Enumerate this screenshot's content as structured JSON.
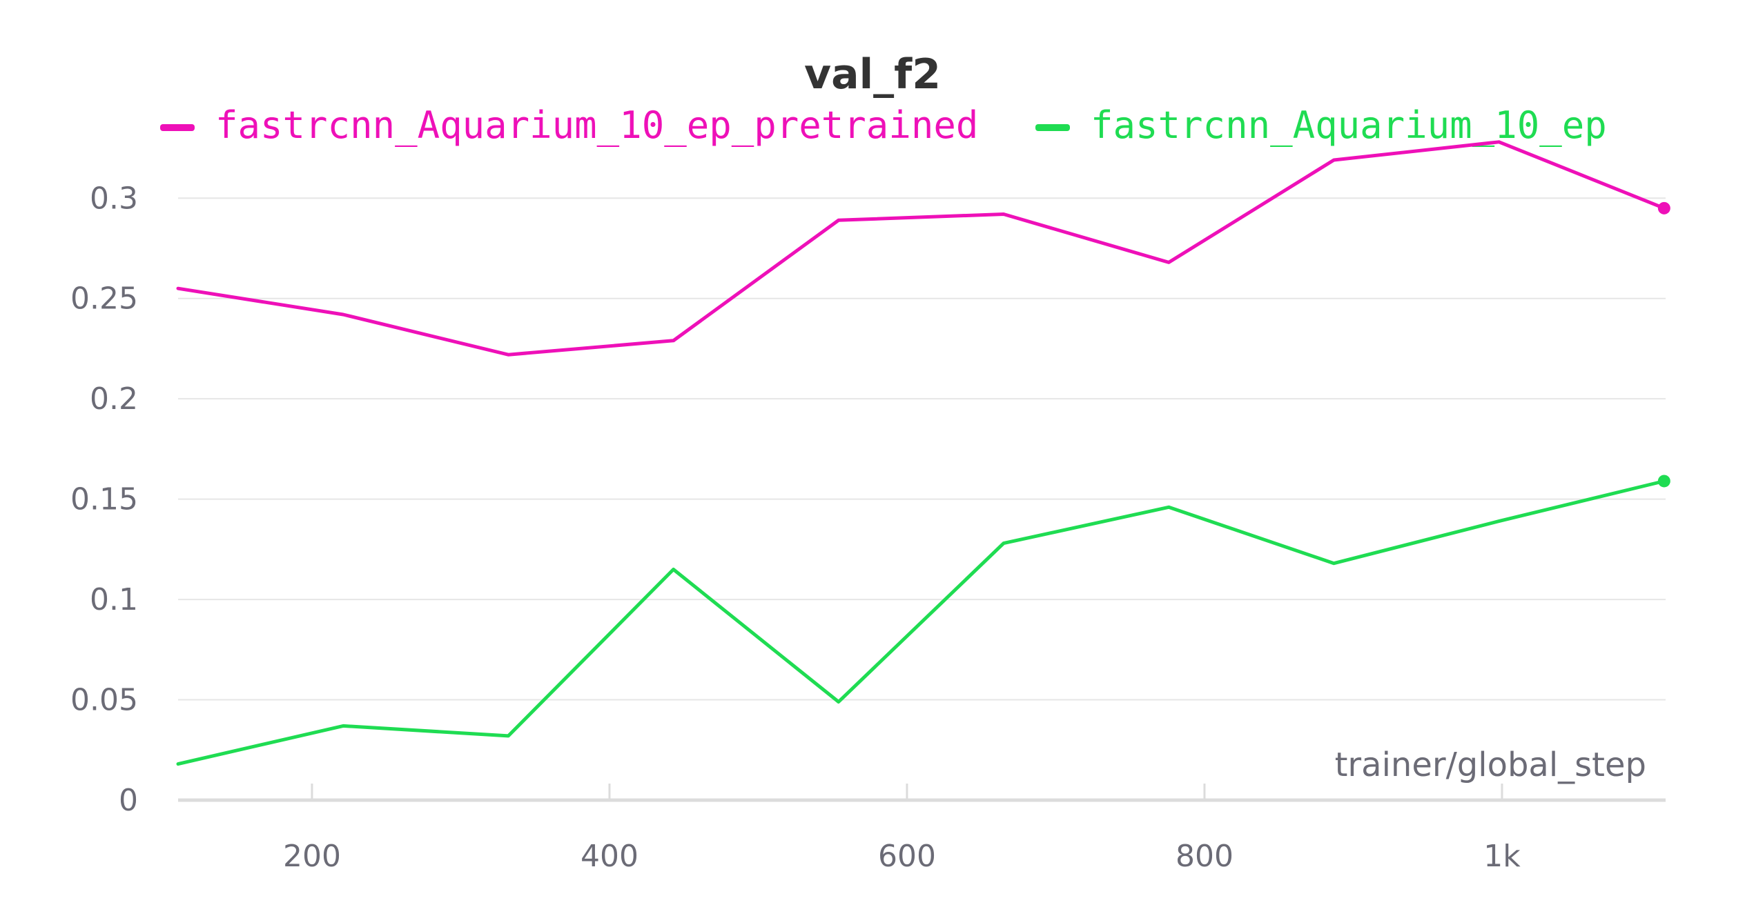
{
  "chart_data": {
    "type": "line",
    "title": "val_f2",
    "xlabel": "trainer/global_step",
    "ylabel": "",
    "xlim": [
      110,
      1110
    ],
    "ylim": [
      0,
      0.33
    ],
    "x_ticks": [
      200,
      400,
      600,
      800,
      1000
    ],
    "x_tick_labels": [
      "200",
      "400",
      "600",
      "800",
      "1k"
    ],
    "y_ticks": [
      0,
      0.05,
      0.1,
      0.15,
      0.2,
      0.25,
      0.3
    ],
    "y_tick_labels": [
      "0",
      "0.05",
      "0.1",
      "0.15",
      "0.2",
      "0.25",
      "0.3"
    ],
    "grid": true,
    "legend_position": "top",
    "series": [
      {
        "name": "fastrcnn_Aquarium_10_ep_pretrained",
        "color": "#ee10b8",
        "x": [
          110,
          221,
          332,
          443,
          554,
          665,
          776,
          887,
          998,
          1109
        ],
        "y": [
          0.255,
          0.242,
          0.222,
          0.229,
          0.289,
          0.292,
          0.268,
          0.319,
          0.328,
          0.295
        ]
      },
      {
        "name": "fastrcnn_Aquarium_10_ep",
        "color": "#1fdc52",
        "x": [
          110,
          221,
          332,
          443,
          554,
          665,
          776,
          887,
          998,
          1109
        ],
        "y": [
          0.018,
          0.037,
          0.032,
          0.115,
          0.049,
          0.128,
          0.146,
          0.118,
          0.139,
          0.159
        ]
      }
    ]
  }
}
